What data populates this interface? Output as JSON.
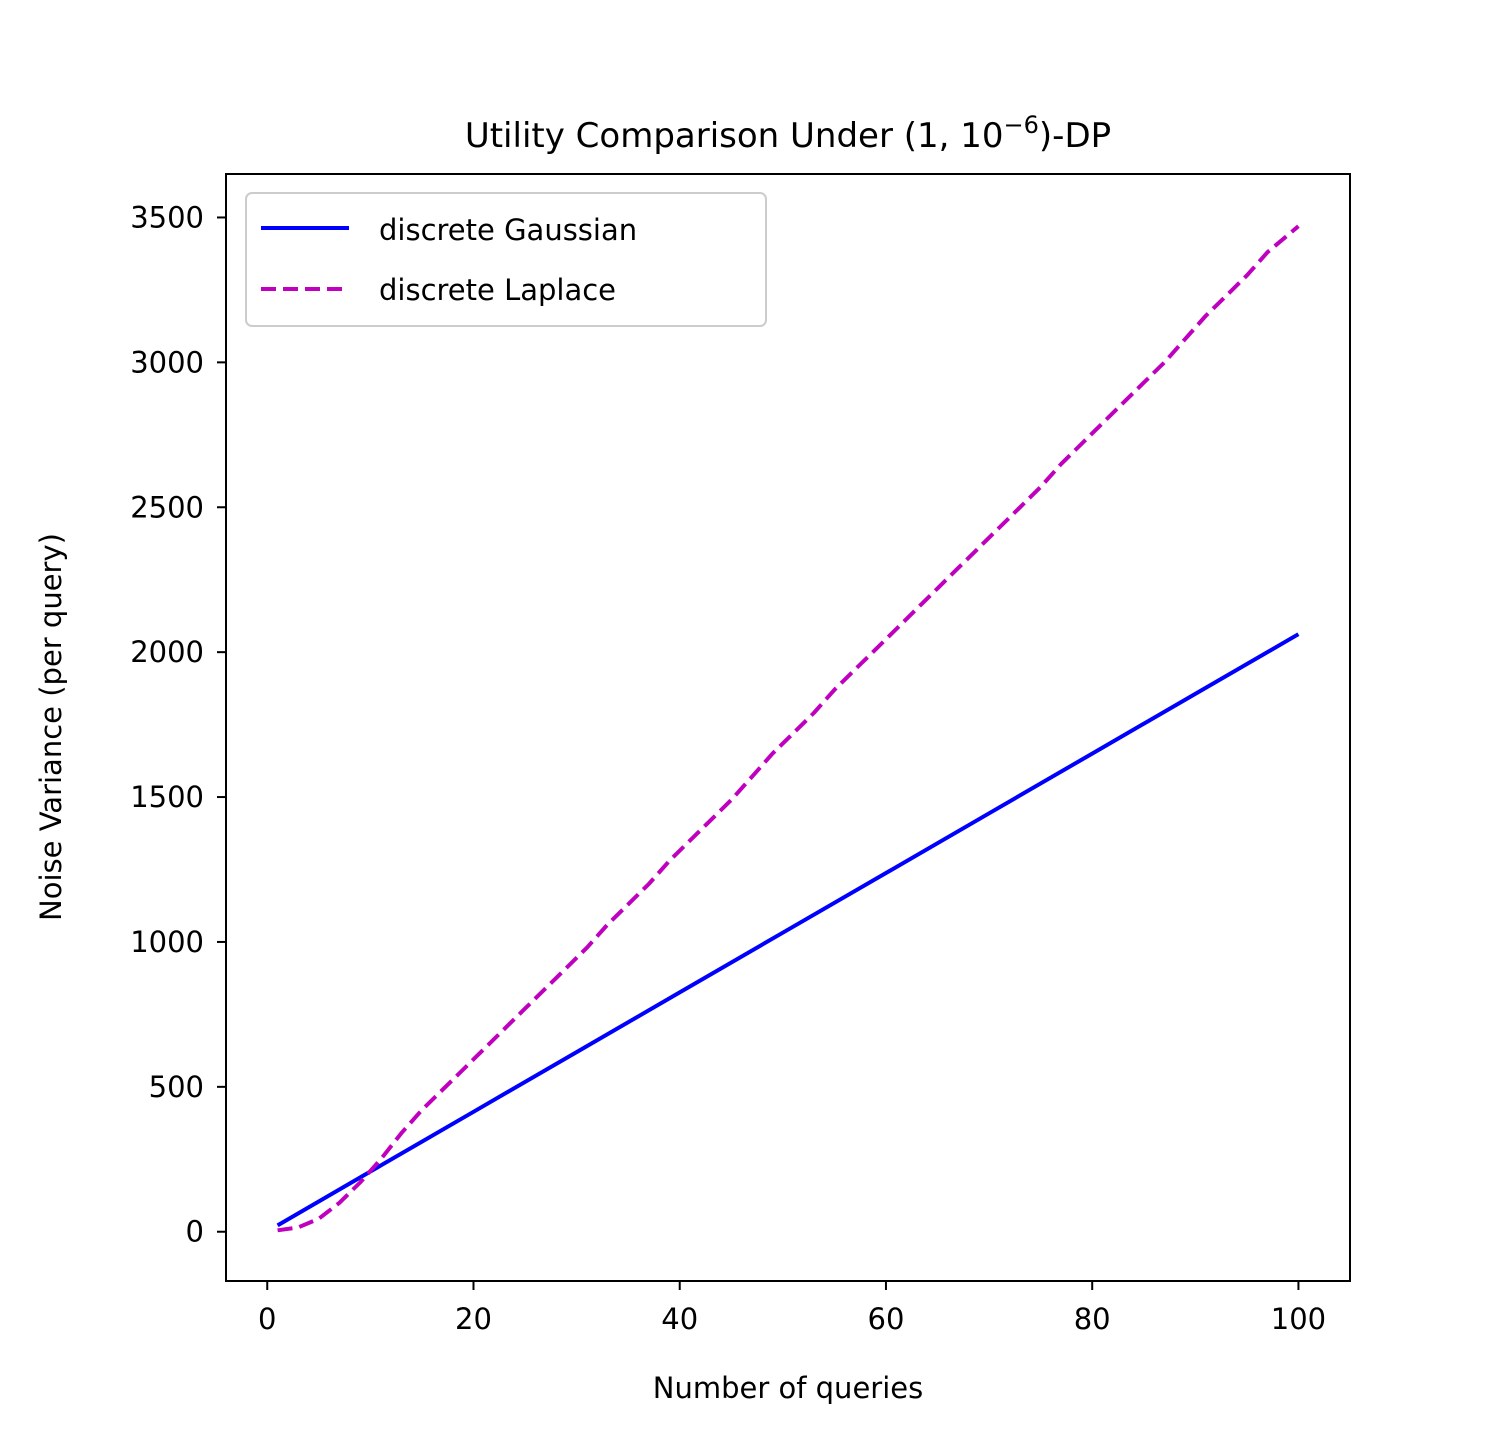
{
  "chart_data": {
    "type": "line",
    "title_main": "Utility Comparison Under (1, 10",
    "title_exp": "−6",
    "title_tail": ")-DP",
    "xlabel": "Number of queries",
    "ylabel": "Noise Variance (per query)",
    "xlim": [
      -4,
      105
    ],
    "ylim": [
      -170,
      3650
    ],
    "xticks": [
      0,
      20,
      40,
      60,
      80,
      100
    ],
    "yticks": [
      0,
      500,
      1000,
      1500,
      2000,
      2500,
      3000,
      3500
    ],
    "grid": false,
    "legend_position": "upper left",
    "series": [
      {
        "name": "discrete Gaussian",
        "color": "#0000ff",
        "style": "solid",
        "x": [
          1,
          10,
          20,
          30,
          40,
          50,
          60,
          70,
          80,
          90,
          100
        ],
        "y": [
          22,
          208,
          414,
          620,
          826,
          1032,
          1238,
          1444,
          1650,
          1856,
          2062
        ]
      },
      {
        "name": "discrete Laplace",
        "color": "#bf00bf",
        "style": "dashed",
        "x": [
          1,
          3,
          5,
          7,
          9,
          11,
          13,
          15,
          17,
          19,
          21,
          23,
          25,
          27,
          29,
          31,
          33,
          35,
          37,
          39,
          41,
          43,
          45,
          47,
          49,
          51,
          53,
          55,
          57,
          59,
          61,
          63,
          65,
          67,
          69,
          71,
          73,
          75,
          77,
          79,
          81,
          83,
          85,
          87,
          89,
          91,
          93,
          95,
          97,
          99,
          100
        ],
        "y": [
          5,
          15,
          45,
          100,
          170,
          250,
          340,
          420,
          490,
          560,
          630,
          700,
          770,
          840,
          910,
          980,
          1060,
          1130,
          1200,
          1280,
          1350,
          1420,
          1490,
          1570,
          1650,
          1720,
          1790,
          1870,
          1940,
          2010,
          2080,
          2150,
          2220,
          2290,
          2360,
          2430,
          2500,
          2570,
          2650,
          2720,
          2790,
          2860,
          2930,
          3000,
          3080,
          3160,
          3230,
          3300,
          3380,
          3440,
          3470
        ]
      }
    ]
  }
}
